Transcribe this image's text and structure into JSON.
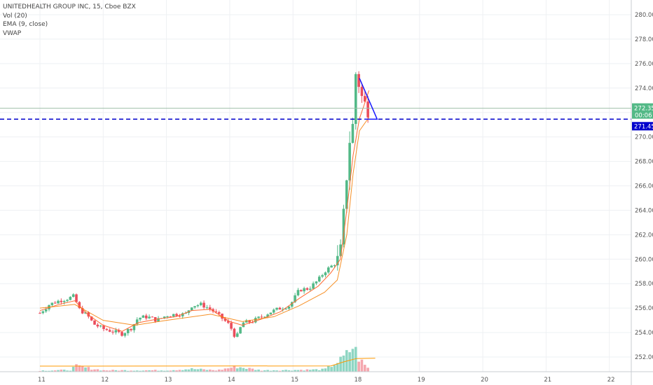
{
  "legend": {
    "title": "UNITEDHEALTH GROUP INC, 15, Cboe BZX",
    "indicators": [
      "Vol (20)",
      "EMA (9, close)",
      "VWAP"
    ]
  },
  "chart_data": {
    "type": "candlestick",
    "symbol_line": "UNITEDHEALTH GROUP INC, 15, Cboe BZX",
    "y_ticks": [
      252,
      254,
      256,
      258,
      260,
      262,
      264,
      266,
      268,
      270,
      272,
      274,
      276,
      278,
      280
    ],
    "y_tick_labels": [
      "252.00",
      "254.00",
      "256.00",
      "258.00",
      "260.00",
      "262.00",
      "264.00",
      "266.00",
      "268.00",
      "270.00",
      "272.00",
      "274.00",
      "276.00",
      "278.00",
      "280.00"
    ],
    "ylim": [
      250.8,
      281.2
    ],
    "x_tick_labels": [
      "11",
      "12",
      "13",
      "14",
      "15",
      "18",
      "19",
      "20",
      "21",
      "22"
    ],
    "x_day_index": [
      0,
      1,
      2,
      3,
      4,
      5,
      6,
      7,
      8,
      9
    ],
    "last_price_label": "272.35",
    "countdown_label": "00:06",
    "horizontal_line_label": "271.45",
    "last_price": 272.35,
    "horizontal_line_value": 271.45,
    "colors": {
      "up": "#53b987",
      "down": "#eb4d5c",
      "ema": "#ff6a33",
      "vwap": "#f57c00",
      "hline": "#0000cc",
      "trendline": "#1a1aff",
      "price_line": "#9fbfa9",
      "volume_up": "#8fd6c3",
      "volume_down": "#f5a6ae",
      "vol_ma": "#ff9800"
    },
    "series": [
      {
        "name": "Vol (20)"
      },
      {
        "name": "EMA (9, close)"
      },
      {
        "name": "VWAP"
      }
    ],
    "close_path": [
      [
        0.0,
        255.6
      ],
      [
        0.15,
        256.3
      ],
      [
        0.3,
        256.6
      ],
      [
        0.45,
        256.8
      ],
      [
        0.55,
        257.0
      ],
      [
        0.6,
        256.0
      ],
      [
        0.75,
        255.4
      ],
      [
        0.85,
        254.7
      ],
      [
        1.0,
        254.3
      ],
      [
        1.15,
        254.1
      ],
      [
        1.3,
        253.9
      ],
      [
        1.45,
        254.4
      ],
      [
        1.55,
        255.2
      ],
      [
        1.7,
        255.3
      ],
      [
        1.85,
        255.0
      ],
      [
        2.0,
        255.4
      ],
      [
        2.15,
        255.5
      ],
      [
        2.3,
        255.5
      ],
      [
        2.4,
        256.2
      ],
      [
        2.55,
        256.3
      ],
      [
        2.7,
        255.9
      ],
      [
        2.85,
        255.3
      ],
      [
        3.0,
        254.6
      ],
      [
        3.1,
        253.5
      ],
      [
        3.2,
        254.8
      ],
      [
        3.35,
        254.9
      ],
      [
        3.5,
        255.3
      ],
      [
        3.65,
        255.7
      ],
      [
        3.8,
        256.0
      ],
      [
        3.95,
        256.2
      ],
      [
        4.1,
        257.5
      ],
      [
        4.25,
        257.6
      ],
      [
        4.4,
        258.3
      ],
      [
        4.5,
        259.0
      ],
      [
        4.6,
        259.4
      ],
      [
        4.7,
        259.8
      ],
      [
        4.75,
        260.5
      ],
      [
        4.8,
        263.5
      ],
      [
        4.85,
        267.0
      ],
      [
        4.9,
        270.0
      ],
      [
        4.95,
        271.0
      ],
      [
        5.0,
        276.0
      ],
      [
        5.05,
        274.0
      ],
      [
        5.1,
        273.0
      ],
      [
        5.15,
        272.5
      ],
      [
        5.2,
        272.35
      ]
    ],
    "ema_path": [
      [
        0.0,
        255.8
      ],
      [
        0.3,
        256.3
      ],
      [
        0.55,
        256.6
      ],
      [
        0.75,
        255.5
      ],
      [
        1.0,
        254.6
      ],
      [
        1.3,
        254.1
      ],
      [
        1.55,
        254.8
      ],
      [
        1.85,
        255.1
      ],
      [
        2.15,
        255.3
      ],
      [
        2.4,
        255.8
      ],
      [
        2.7,
        255.9
      ],
      [
        3.0,
        254.9
      ],
      [
        3.2,
        254.6
      ],
      [
        3.5,
        255.1
      ],
      [
        3.8,
        255.7
      ],
      [
        4.1,
        256.8
      ],
      [
        4.4,
        257.8
      ],
      [
        4.6,
        258.9
      ],
      [
        4.75,
        260.0
      ],
      [
        4.85,
        264.0
      ],
      [
        4.95,
        268.5
      ],
      [
        5.05,
        271.5
      ],
      [
        5.15,
        273.0
      ],
      [
        5.2,
        273.8
      ]
    ],
    "vwap_path": [
      [
        0.0,
        256.0
      ],
      [
        0.55,
        256.3
      ],
      [
        1.0,
        255.0
      ],
      [
        1.5,
        254.6
      ],
      [
        2.0,
        255.0
      ],
      [
        2.7,
        255.5
      ],
      [
        3.2,
        254.9
      ],
      [
        3.7,
        255.3
      ],
      [
        4.1,
        256.2
      ],
      [
        4.5,
        257.3
      ],
      [
        4.7,
        258.3
      ],
      [
        4.85,
        262.0
      ],
      [
        4.95,
        267.0
      ],
      [
        5.05,
        270.5
      ],
      [
        5.2,
        271.6
      ]
    ],
    "volume_profile": [
      [
        0.0,
        0.2
      ],
      [
        0.5,
        0.3
      ],
      [
        0.55,
        1.0
      ],
      [
        1.0,
        0.25
      ],
      [
        1.5,
        0.25
      ],
      [
        2.0,
        0.25
      ],
      [
        2.4,
        0.5
      ],
      [
        2.8,
        0.25
      ],
      [
        3.1,
        0.9
      ],
      [
        3.5,
        0.25
      ],
      [
        4.0,
        0.3
      ],
      [
        4.5,
        0.4
      ],
      [
        4.75,
        2.0
      ],
      [
        4.85,
        3.0
      ],
      [
        4.95,
        4.6
      ],
      [
        5.05,
        2.2
      ],
      [
        5.15,
        1.0
      ],
      [
        5.2,
        0.5
      ]
    ],
    "vol_ma_path": [
      [
        0.0,
        0.25
      ],
      [
        4.6,
        0.28
      ],
      [
        4.8,
        1.0
      ],
      [
        5.0,
        1.6
      ],
      [
        5.3,
        1.65
      ]
    ],
    "trendline": [
      [
        5.05,
        274.8
      ],
      [
        5.33,
        271.45
      ]
    ]
  }
}
